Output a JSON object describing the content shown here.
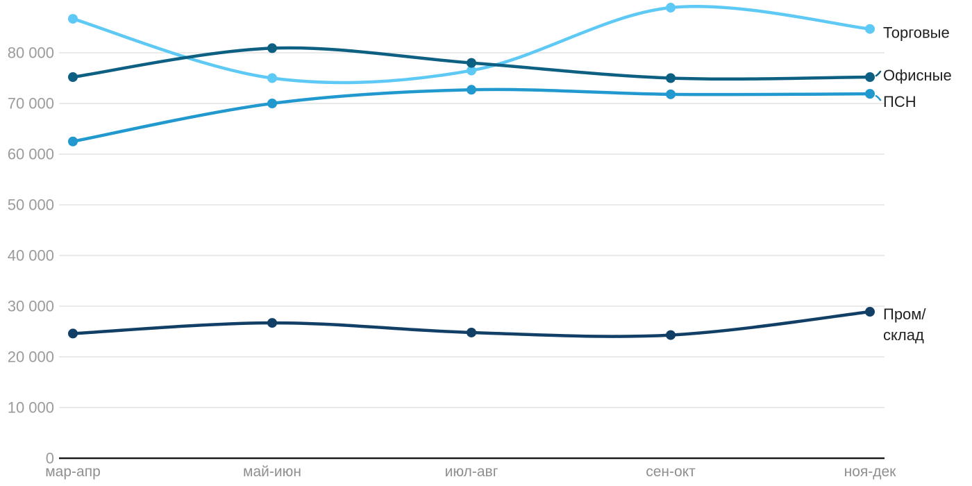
{
  "chart_data": {
    "type": "line",
    "title": "",
    "xlabel": "",
    "ylabel": "",
    "categories": [
      "мар-апр",
      "май-июн",
      "июл-авг",
      "сен-окт",
      "ноя-дек"
    ],
    "y_ticks": [
      {
        "value": 0,
        "label": "0"
      },
      {
        "value": 10000,
        "label": "10 000"
      },
      {
        "value": 20000,
        "label": "20 000"
      },
      {
        "value": 30000,
        "label": "30 000"
      },
      {
        "value": 40000,
        "label": "40 000"
      },
      {
        "value": 50000,
        "label": "50 000"
      },
      {
        "value": 60000,
        "label": "60 000"
      },
      {
        "value": 70000,
        "label": "70 000"
      },
      {
        "value": 80000,
        "label": "80 000"
      }
    ],
    "ylim": [
      0,
      92000
    ],
    "grid": "horizontal-only",
    "legend_position": "right-of-line-ends",
    "series": [
      {
        "id": "torgovye",
        "name": "Торговые",
        "label_lines": [
          "Торговые"
        ],
        "color": "#5ec9f4",
        "values": [
          86700,
          75000,
          76500,
          88900,
          84700
        ],
        "label_dy": 5,
        "leader": "none"
      },
      {
        "id": "ofisnye",
        "name": "Офисные",
        "label_lines": [
          "Офисные"
        ],
        "color": "#0e6083",
        "values": [
          75200,
          80900,
          78000,
          75000,
          75200
        ],
        "label_dy": -3,
        "leader": "up"
      },
      {
        "id": "psn",
        "name": "ПСН",
        "label_lines": [
          "ПСН"
        ],
        "color": "#2199ce",
        "values": [
          62500,
          70000,
          72700,
          71800,
          71900
        ],
        "label_dy": 11,
        "leader": "down"
      },
      {
        "id": "prom-sklad",
        "name": "Пром/склад",
        "label_lines": [
          "Пром/",
          "склад"
        ],
        "color": "#113f66",
        "values": [
          24600,
          26700,
          24800,
          24300,
          28900
        ],
        "label_dy": 3,
        "leader": "none"
      }
    ],
    "axis_color": "#1b1b1b",
    "grid_color": "#e3e3e3",
    "tick_label_color": "#9b9b9b",
    "series_label_color": "#212121"
  }
}
